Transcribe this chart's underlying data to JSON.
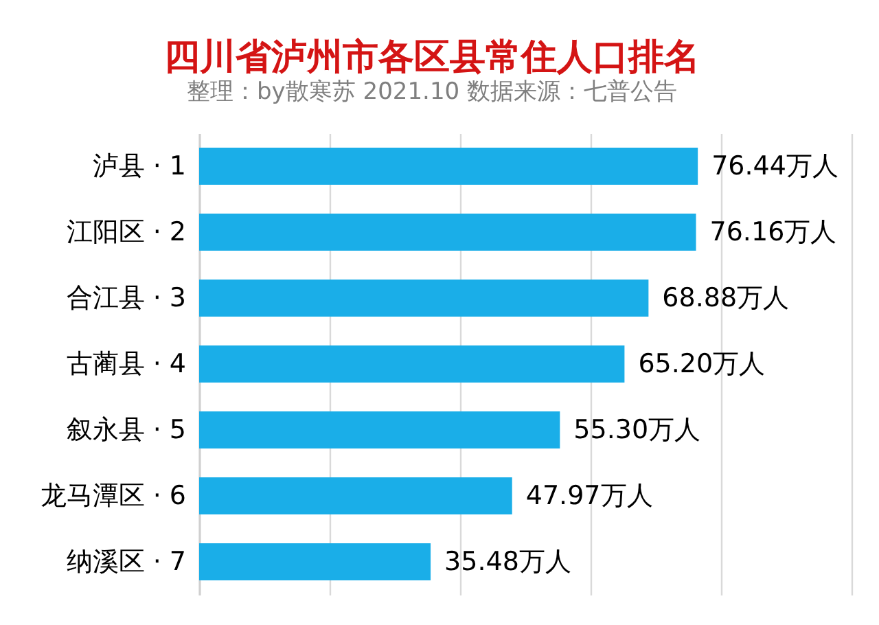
{
  "chart_data": {
    "type": "bar",
    "orientation": "horizontal",
    "title": "四川省泸州市各区县常住人口排名",
    "subtitle": "整理：by散寒苏  2021.10  数据来源：七普公告",
    "categories": [
      "泸县 · 1",
      "江阳区 · 2",
      "合江县 · 3",
      "古蔺县 · 4",
      "叙永县 · 5",
      "龙马潭区 · 6",
      "纳溪区 · 7"
    ],
    "values": [
      76.44,
      76.16,
      68.88,
      65.2,
      55.3,
      47.97,
      35.48
    ],
    "value_labels": [
      "76.44万人",
      "76.16万人",
      "68.88万人",
      "65.20万人",
      "55.30万人",
      "47.97万人",
      "35.48万人"
    ],
    "color": "#1aaee8",
    "xlim": [
      0,
      100
    ],
    "xticks": [
      {
        "value": 0,
        "label": null
      },
      {
        "value": 20,
        "label": null
      },
      {
        "value": 40,
        "label": null
      },
      {
        "value": 60,
        "label": null
      },
      {
        "value": 80,
        "label": null
      },
      {
        "value": 100,
        "label": null
      }
    ],
    "grid": "x",
    "tick_labels": "y"
  }
}
